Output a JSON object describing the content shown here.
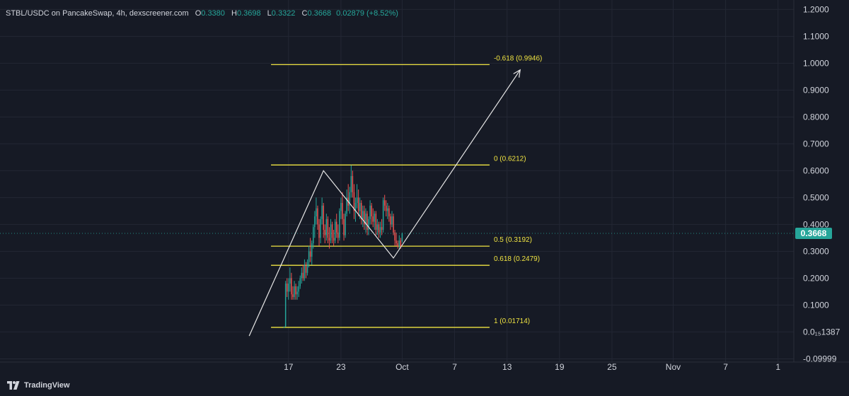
{
  "header": {
    "symbol": "STBL/USDC on PancakeSwap, 4h, dexscreener.com",
    "open_label": "O",
    "open": "0.3380",
    "high_label": "H",
    "high": "0.3698",
    "low_label": "L",
    "low": "0.3322",
    "close_label": "C",
    "close": "0.3668",
    "change": "0.02879 (+8.52%)"
  },
  "footer": {
    "brand": "TradingView",
    "logo_icon": "tradingview-logo-icon"
  },
  "colors": {
    "background": "#161a25",
    "grid": "#232734",
    "axis_text": "#d1d4dc",
    "up": "#26a69a",
    "down": "#ef5350",
    "fib_line": "#f0e442",
    "drawing": "#e6e6e6",
    "price_badge": "#26a69a"
  },
  "chart_data": {
    "type": "candlestick",
    "y_ticks": [
      "1.2000",
      "1.1000",
      "1.0000",
      "0.9000",
      "0.8000",
      "0.7000",
      "0.6000",
      "0.5000",
      "0.4000",
      "0.3000",
      "0.2000",
      "0.1000",
      "0.0₁₅1387",
      "-0.09999"
    ],
    "y_tick_values": [
      1.2,
      1.1,
      1.0,
      0.9,
      0.8,
      0.7,
      0.6,
      0.5,
      0.4,
      0.3,
      0.2,
      0.1,
      0.0,
      -0.1
    ],
    "ylim": [
      -0.112,
      1.235
    ],
    "x_ticks": [
      "17",
      "23",
      "Oct",
      "7",
      "13",
      "19",
      "25",
      "Nov",
      "7",
      "1"
    ],
    "x_tick_days": [
      17,
      23,
      30,
      36,
      42,
      48,
      54,
      61,
      67,
      73
    ],
    "xlim_days": [
      -16.0,
      74.8
    ],
    "x_tick_note": "days counted from Sep 1; 'Oct' = Oct 1 (day 30), 'Nov' = Nov 1 (day 61)",
    "last_price": "0.3668",
    "last_price_value": 0.3668,
    "fib_levels": [
      {
        "label": "-0.618 (0.9946)",
        "value": 0.9946
      },
      {
        "label": "0 (0.6212)",
        "value": 0.6212
      },
      {
        "label": "0.5 (0.3192)",
        "value": 0.3192
      },
      {
        "label": "0.618 (0.2479)",
        "value": 0.2479
      },
      {
        "label": "1 (0.01714)",
        "value": 0.01714
      }
    ],
    "fib_x_range_days": [
      15.0,
      40.0
    ],
    "projection_path": [
      {
        "day": 12.5,
        "price": -0.015
      },
      {
        "day": 21.0,
        "price": 0.6
      },
      {
        "day": 29.0,
        "price": 0.275
      },
      {
        "day": 43.5,
        "price": 0.975
      }
    ],
    "candles": [
      {
        "d": 16.5,
        "o": 0.02,
        "h": 0.02,
        "l": 0.015,
        "c": 0.02
      },
      {
        "d": 16.667,
        "o": 0.02,
        "h": 0.19,
        "l": 0.02,
        "c": 0.18
      },
      {
        "d": 16.833,
        "o": 0.18,
        "h": 0.2,
        "l": 0.13,
        "c": 0.15
      },
      {
        "d": 17.0,
        "o": 0.15,
        "h": 0.2,
        "l": 0.12,
        "c": 0.18
      },
      {
        "d": 17.167,
        "o": 0.18,
        "h": 0.24,
        "l": 0.15,
        "c": 0.2
      },
      {
        "d": 17.333,
        "o": 0.2,
        "h": 0.22,
        "l": 0.12,
        "c": 0.14
      },
      {
        "d": 17.5,
        "o": 0.14,
        "h": 0.17,
        "l": 0.12,
        "c": 0.13
      },
      {
        "d": 17.667,
        "o": 0.13,
        "h": 0.19,
        "l": 0.12,
        "c": 0.17
      },
      {
        "d": 17.833,
        "o": 0.17,
        "h": 0.18,
        "l": 0.12,
        "c": 0.14
      },
      {
        "d": 18.0,
        "o": 0.14,
        "h": 0.17,
        "l": 0.12,
        "c": 0.15
      },
      {
        "d": 18.167,
        "o": 0.15,
        "h": 0.19,
        "l": 0.13,
        "c": 0.17
      },
      {
        "d": 18.333,
        "o": 0.17,
        "h": 0.21,
        "l": 0.16,
        "c": 0.2
      },
      {
        "d": 18.5,
        "o": 0.2,
        "h": 0.24,
        "l": 0.18,
        "c": 0.22
      },
      {
        "d": 18.667,
        "o": 0.22,
        "h": 0.25,
        "l": 0.19,
        "c": 0.2
      },
      {
        "d": 18.833,
        "o": 0.2,
        "h": 0.27,
        "l": 0.19,
        "c": 0.25
      },
      {
        "d": 19.0,
        "o": 0.25,
        "h": 0.26,
        "l": 0.2,
        "c": 0.22
      },
      {
        "d": 19.167,
        "o": 0.22,
        "h": 0.27,
        "l": 0.21,
        "c": 0.26
      },
      {
        "d": 19.333,
        "o": 0.26,
        "h": 0.32,
        "l": 0.24,
        "c": 0.3
      },
      {
        "d": 19.5,
        "o": 0.3,
        "h": 0.35,
        "l": 0.26,
        "c": 0.28
      },
      {
        "d": 19.667,
        "o": 0.28,
        "h": 0.34,
        "l": 0.25,
        "c": 0.33
      },
      {
        "d": 19.833,
        "o": 0.33,
        "h": 0.4,
        "l": 0.31,
        "c": 0.39
      },
      {
        "d": 20.0,
        "o": 0.39,
        "h": 0.45,
        "l": 0.35,
        "c": 0.43
      },
      {
        "d": 20.167,
        "o": 0.43,
        "h": 0.5,
        "l": 0.4,
        "c": 0.46
      },
      {
        "d": 20.333,
        "o": 0.46,
        "h": 0.47,
        "l": 0.38,
        "c": 0.4
      },
      {
        "d": 20.5,
        "o": 0.4,
        "h": 0.42,
        "l": 0.32,
        "c": 0.35
      },
      {
        "d": 20.667,
        "o": 0.35,
        "h": 0.43,
        "l": 0.33,
        "c": 0.42
      },
      {
        "d": 20.833,
        "o": 0.42,
        "h": 0.5,
        "l": 0.4,
        "c": 0.47
      },
      {
        "d": 21.0,
        "o": 0.47,
        "h": 0.48,
        "l": 0.35,
        "c": 0.38
      },
      {
        "d": 21.167,
        "o": 0.38,
        "h": 0.4,
        "l": 0.33,
        "c": 0.36
      },
      {
        "d": 21.333,
        "o": 0.36,
        "h": 0.44,
        "l": 0.34,
        "c": 0.42
      },
      {
        "d": 21.5,
        "o": 0.42,
        "h": 0.43,
        "l": 0.33,
        "c": 0.35
      },
      {
        "d": 21.667,
        "o": 0.35,
        "h": 0.39,
        "l": 0.31,
        "c": 0.34
      },
      {
        "d": 21.833,
        "o": 0.34,
        "h": 0.42,
        "l": 0.33,
        "c": 0.4
      },
      {
        "d": 22.0,
        "o": 0.4,
        "h": 0.41,
        "l": 0.33,
        "c": 0.35
      },
      {
        "d": 22.167,
        "o": 0.35,
        "h": 0.38,
        "l": 0.32,
        "c": 0.34
      },
      {
        "d": 22.333,
        "o": 0.34,
        "h": 0.42,
        "l": 0.33,
        "c": 0.41
      },
      {
        "d": 22.5,
        "o": 0.41,
        "h": 0.44,
        "l": 0.35,
        "c": 0.37
      },
      {
        "d": 22.667,
        "o": 0.37,
        "h": 0.4,
        "l": 0.33,
        "c": 0.35
      },
      {
        "d": 22.833,
        "o": 0.35,
        "h": 0.46,
        "l": 0.34,
        "c": 0.45
      },
      {
        "d": 23.0,
        "o": 0.45,
        "h": 0.5,
        "l": 0.42,
        "c": 0.48
      },
      {
        "d": 23.167,
        "o": 0.48,
        "h": 0.52,
        "l": 0.4,
        "c": 0.42
      },
      {
        "d": 23.333,
        "o": 0.42,
        "h": 0.44,
        "l": 0.34,
        "c": 0.36
      },
      {
        "d": 23.5,
        "o": 0.36,
        "h": 0.45,
        "l": 0.35,
        "c": 0.44
      },
      {
        "d": 23.667,
        "o": 0.44,
        "h": 0.53,
        "l": 0.43,
        "c": 0.5
      },
      {
        "d": 23.833,
        "o": 0.5,
        "h": 0.55,
        "l": 0.45,
        "c": 0.47
      },
      {
        "d": 24.0,
        "o": 0.47,
        "h": 0.54,
        "l": 0.44,
        "c": 0.52
      },
      {
        "d": 24.167,
        "o": 0.52,
        "h": 0.62,
        "l": 0.5,
        "c": 0.58
      },
      {
        "d": 24.333,
        "o": 0.58,
        "h": 0.6,
        "l": 0.5,
        "c": 0.52
      },
      {
        "d": 24.5,
        "o": 0.52,
        "h": 0.55,
        "l": 0.42,
        "c": 0.45
      },
      {
        "d": 24.667,
        "o": 0.45,
        "h": 0.5,
        "l": 0.41,
        "c": 0.48
      },
      {
        "d": 24.833,
        "o": 0.48,
        "h": 0.55,
        "l": 0.46,
        "c": 0.5
      },
      {
        "d": 25.0,
        "o": 0.5,
        "h": 0.53,
        "l": 0.43,
        "c": 0.45
      },
      {
        "d": 25.167,
        "o": 0.45,
        "h": 0.5,
        "l": 0.42,
        "c": 0.48
      },
      {
        "d": 25.333,
        "o": 0.48,
        "h": 0.49,
        "l": 0.4,
        "c": 0.42
      },
      {
        "d": 25.5,
        "o": 0.42,
        "h": 0.47,
        "l": 0.39,
        "c": 0.45
      },
      {
        "d": 25.667,
        "o": 0.45,
        "h": 0.47,
        "l": 0.38,
        "c": 0.4
      },
      {
        "d": 25.833,
        "o": 0.4,
        "h": 0.46,
        "l": 0.37,
        "c": 0.44
      },
      {
        "d": 26.0,
        "o": 0.44,
        "h": 0.45,
        "l": 0.36,
        "c": 0.38
      },
      {
        "d": 26.167,
        "o": 0.38,
        "h": 0.43,
        "l": 0.36,
        "c": 0.42
      },
      {
        "d": 26.333,
        "o": 0.42,
        "h": 0.49,
        "l": 0.4,
        "c": 0.47
      },
      {
        "d": 26.5,
        "o": 0.47,
        "h": 0.48,
        "l": 0.4,
        "c": 0.43
      },
      {
        "d": 26.667,
        "o": 0.43,
        "h": 0.46,
        "l": 0.39,
        "c": 0.41
      },
      {
        "d": 26.833,
        "o": 0.41,
        "h": 0.45,
        "l": 0.38,
        "c": 0.44
      },
      {
        "d": 27.0,
        "o": 0.44,
        "h": 0.45,
        "l": 0.36,
        "c": 0.38
      },
      {
        "d": 27.167,
        "o": 0.38,
        "h": 0.42,
        "l": 0.36,
        "c": 0.4
      },
      {
        "d": 27.333,
        "o": 0.4,
        "h": 0.41,
        "l": 0.35,
        "c": 0.37
      },
      {
        "d": 27.5,
        "o": 0.37,
        "h": 0.41,
        "l": 0.35,
        "c": 0.39
      },
      {
        "d": 27.667,
        "o": 0.39,
        "h": 0.42,
        "l": 0.36,
        "c": 0.38
      },
      {
        "d": 27.833,
        "o": 0.38,
        "h": 0.5,
        "l": 0.37,
        "c": 0.49
      },
      {
        "d": 28.0,
        "o": 0.49,
        "h": 0.51,
        "l": 0.45,
        "c": 0.47
      },
      {
        "d": 28.167,
        "o": 0.47,
        "h": 0.49,
        "l": 0.43,
        "c": 0.45
      },
      {
        "d": 28.333,
        "o": 0.45,
        "h": 0.48,
        "l": 0.42,
        "c": 0.46
      },
      {
        "d": 28.5,
        "o": 0.46,
        "h": 0.47,
        "l": 0.41,
        "c": 0.43
      },
      {
        "d": 28.667,
        "o": 0.43,
        "h": 0.44,
        "l": 0.38,
        "c": 0.4
      },
      {
        "d": 28.833,
        "o": 0.4,
        "h": 0.45,
        "l": 0.39,
        "c": 0.43
      },
      {
        "d": 29.0,
        "o": 0.43,
        "h": 0.44,
        "l": 0.36,
        "c": 0.37
      },
      {
        "d": 29.167,
        "o": 0.37,
        "h": 0.38,
        "l": 0.32,
        "c": 0.34
      },
      {
        "d": 29.333,
        "o": 0.34,
        "h": 0.37,
        "l": 0.32,
        "c": 0.33
      },
      {
        "d": 29.5,
        "o": 0.33,
        "h": 0.34,
        "l": 0.31,
        "c": 0.32
      },
      {
        "d": 29.667,
        "o": 0.32,
        "h": 0.36,
        "l": 0.31,
        "c": 0.34
      },
      {
        "d": 29.833,
        "o": 0.34,
        "h": 0.35,
        "l": 0.31,
        "c": 0.32
      },
      {
        "d": 30.0,
        "o": 0.338,
        "h": 0.3698,
        "l": 0.3322,
        "c": 0.3668
      }
    ]
  }
}
